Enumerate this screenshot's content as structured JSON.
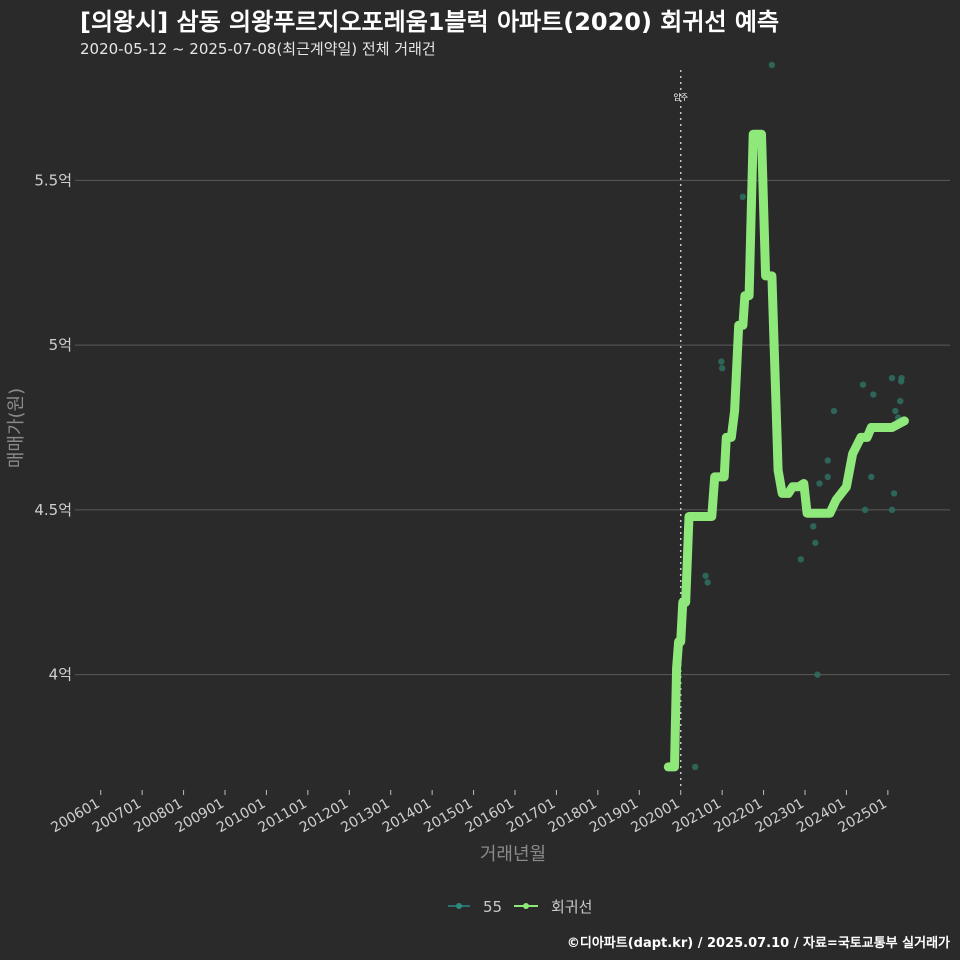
{
  "header": {
    "title": "[의왕시] 삼동 의왕푸르지오포레움1블럭 아파트(2020) 회귀선 예측",
    "subtitle": "2020-05-12 ~ 2025-07-08(최근계약일) 전체 거래건"
  },
  "footer": {
    "credit": "©디아파트(dapt.kr) / 2025.07.10 / 자료=국토교통부 실거래가"
  },
  "colors": {
    "background": "#2a2a2a",
    "grid": "#5a5a5a",
    "regression": "#8fe87a",
    "points": "#2f6b5e",
    "legend_points": "#2e8a80",
    "vline": "#c8c8c8"
  },
  "chart_data": {
    "type": "scatter",
    "title": "[의왕시] 삼동 의왕푸르지오포레움1블럭 아파트(2020) 회귀선 예측",
    "subtitle": "2020-05-12 ~ 2025-07-08(최근계약일) 전체 거래건",
    "xlabel": "거래년월",
    "ylabel": "매매가(원)",
    "xlim": [
      2005.5,
      2026.5
    ],
    "ylim": [
      3.65,
      5.85
    ],
    "y_ticks": [
      {
        "value": 4.0,
        "label": "4억"
      },
      {
        "value": 4.5,
        "label": "4.5억"
      },
      {
        "value": 5.0,
        "label": "5억"
      },
      {
        "value": 5.5,
        "label": "5.5억"
      }
    ],
    "x_ticks": [
      {
        "value": 2006,
        "label": "200601"
      },
      {
        "value": 2007,
        "label": "200701"
      },
      {
        "value": 2008,
        "label": "200801"
      },
      {
        "value": 2009,
        "label": "200901"
      },
      {
        "value": 2010,
        "label": "201001"
      },
      {
        "value": 2011,
        "label": "201101"
      },
      {
        "value": 2012,
        "label": "201201"
      },
      {
        "value": 2013,
        "label": "201301"
      },
      {
        "value": 2014,
        "label": "201401"
      },
      {
        "value": 2015,
        "label": "201501"
      },
      {
        "value": 2016,
        "label": "201601"
      },
      {
        "value": 2017,
        "label": "201701"
      },
      {
        "value": 2018,
        "label": "201801"
      },
      {
        "value": 2019,
        "label": "201901"
      },
      {
        "value": 2020,
        "label": "202001"
      },
      {
        "value": 2021,
        "label": "202101"
      },
      {
        "value": 2022,
        "label": "202201"
      },
      {
        "value": 2023,
        "label": "202301"
      },
      {
        "value": 2024,
        "label": "202401"
      },
      {
        "value": 2025,
        "label": "202501"
      }
    ],
    "vline": {
      "x": 2020.0,
      "label": "입주"
    },
    "legend": [
      {
        "name": "55",
        "kind": "points"
      },
      {
        "name": "회귀선",
        "kind": "line"
      }
    ],
    "series": [
      {
        "name": "55",
        "points": [
          {
            "x": 2020.35,
            "y": 3.72
          },
          {
            "x": 2020.6,
            "y": 4.3
          },
          {
            "x": 2020.65,
            "y": 4.28
          },
          {
            "x": 2020.98,
            "y": 4.95
          },
          {
            "x": 2021.0,
            "y": 4.93
          },
          {
            "x": 2021.5,
            "y": 5.45
          },
          {
            "x": 2022.2,
            "y": 5.85
          },
          {
            "x": 2022.9,
            "y": 4.35
          },
          {
            "x": 2023.2,
            "y": 4.45
          },
          {
            "x": 2023.25,
            "y": 4.4
          },
          {
            "x": 2023.3,
            "y": 4.0
          },
          {
            "x": 2023.35,
            "y": 4.58
          },
          {
            "x": 2023.55,
            "y": 4.6
          },
          {
            "x": 2023.55,
            "y": 4.65
          },
          {
            "x": 2023.7,
            "y": 4.8
          },
          {
            "x": 2024.4,
            "y": 4.88
          },
          {
            "x": 2024.45,
            "y": 4.5
          },
          {
            "x": 2024.6,
            "y": 4.6
          },
          {
            "x": 2024.65,
            "y": 4.85
          },
          {
            "x": 2025.1,
            "y": 4.9
          },
          {
            "x": 2025.1,
            "y": 4.5
          },
          {
            "x": 2025.15,
            "y": 4.55
          },
          {
            "x": 2025.18,
            "y": 4.8
          },
          {
            "x": 2025.25,
            "y": 4.78
          },
          {
            "x": 2025.3,
            "y": 4.83
          },
          {
            "x": 2025.32,
            "y": 4.89
          },
          {
            "x": 2025.33,
            "y": 4.9
          }
        ]
      },
      {
        "name": "회귀선",
        "points": [
          {
            "x": 2019.7,
            "y": 3.72
          },
          {
            "x": 2019.85,
            "y": 3.72
          },
          {
            "x": 2019.9,
            "y": 4.02
          },
          {
            "x": 2019.95,
            "y": 4.1
          },
          {
            "x": 2020.0,
            "y": 4.1
          },
          {
            "x": 2020.05,
            "y": 4.22
          },
          {
            "x": 2020.12,
            "y": 4.22
          },
          {
            "x": 2020.2,
            "y": 4.48
          },
          {
            "x": 2020.75,
            "y": 4.48
          },
          {
            "x": 2020.82,
            "y": 4.6
          },
          {
            "x": 2021.05,
            "y": 4.6
          },
          {
            "x": 2021.1,
            "y": 4.72
          },
          {
            "x": 2021.22,
            "y": 4.72
          },
          {
            "x": 2021.3,
            "y": 4.8
          },
          {
            "x": 2021.4,
            "y": 5.06
          },
          {
            "x": 2021.5,
            "y": 5.06
          },
          {
            "x": 2021.55,
            "y": 5.15
          },
          {
            "x": 2021.65,
            "y": 5.15
          },
          {
            "x": 2021.75,
            "y": 5.64
          },
          {
            "x": 2021.95,
            "y": 5.64
          },
          {
            "x": 2022.05,
            "y": 5.21
          },
          {
            "x": 2022.2,
            "y": 5.21
          },
          {
            "x": 2022.35,
            "y": 4.62
          },
          {
            "x": 2022.45,
            "y": 4.55
          },
          {
            "x": 2022.6,
            "y": 4.55
          },
          {
            "x": 2022.7,
            "y": 4.57
          },
          {
            "x": 2022.85,
            "y": 4.57
          },
          {
            "x": 2022.97,
            "y": 4.58
          },
          {
            "x": 2023.05,
            "y": 4.49
          },
          {
            "x": 2023.6,
            "y": 4.49
          },
          {
            "x": 2023.75,
            "y": 4.53
          },
          {
            "x": 2024.0,
            "y": 4.57
          },
          {
            "x": 2024.15,
            "y": 4.67
          },
          {
            "x": 2024.35,
            "y": 4.72
          },
          {
            "x": 2024.5,
            "y": 4.72
          },
          {
            "x": 2024.6,
            "y": 4.75
          },
          {
            "x": 2025.1,
            "y": 4.75
          },
          {
            "x": 2025.25,
            "y": 4.76
          },
          {
            "x": 2025.4,
            "y": 4.77
          }
        ]
      }
    ]
  }
}
